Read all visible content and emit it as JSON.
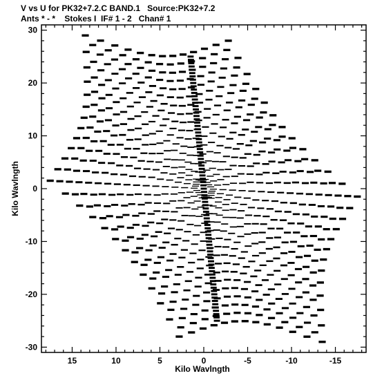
{
  "header": {
    "line1": "V vs U for PK32+7.2.C BAND.1   Source:PK32+7.2",
    "line2": "Ants * - *    Stokes I  IF# 1 - 2   Chan# 1"
  },
  "chart_data": {
    "type": "scatter",
    "title": "V vs U for PK32+7.2.C BAND.1   Source:PK32+7.2",
    "subtitle": "Ants * - *    Stokes I  IF# 1 - 2   Chan# 1",
    "xlabel": "Kilo Wavlngth",
    "ylabel": "Kilo Wavlngth",
    "xlim": [
      18.5,
      -18.5
    ],
    "ylim": [
      -31,
      31
    ],
    "x_ticks": [
      15,
      10,
      5,
      0,
      -5,
      -10,
      -15
    ],
    "x_tick_labels": [
      "15",
      "10",
      "5",
      "0",
      "-5",
      "-10",
      "-15"
    ],
    "y_ticks": [
      30,
      20,
      10,
      0,
      -10,
      -20,
      -30
    ],
    "y_tick_labels": [
      "30",
      "20",
      "10",
      "0",
      "-10",
      "-20",
      "-30"
    ],
    "grid": false,
    "legend": "none",
    "point_color": "#000000",
    "description": "uv-coverage: 6-armed snapshot pattern with conjugate symmetry",
    "arms": [
      {
        "name": "arm-ne",
        "end": [
          -2.8,
          28.0
        ]
      },
      {
        "name": "arm-nw",
        "end": [
          13.5,
          29.0
        ]
      },
      {
        "name": "arm-w",
        "end": [
          17.5,
          1.5
        ]
      },
      {
        "name": "arm-sw",
        "end": [
          2.8,
          -28.0
        ]
      },
      {
        "name": "arm-se",
        "end": [
          -13.5,
          -29.0
        ]
      },
      {
        "name": "arm-e",
        "end": [
          -17.5,
          -1.5
        ]
      }
    ],
    "central_ridge": [
      [
        1.5,
        25.0
      ],
      [
        0,
        0
      ],
      [
        -1.5,
        -25.0
      ]
    ],
    "baseline_segments": 16,
    "dash_length": 0.8
  }
}
